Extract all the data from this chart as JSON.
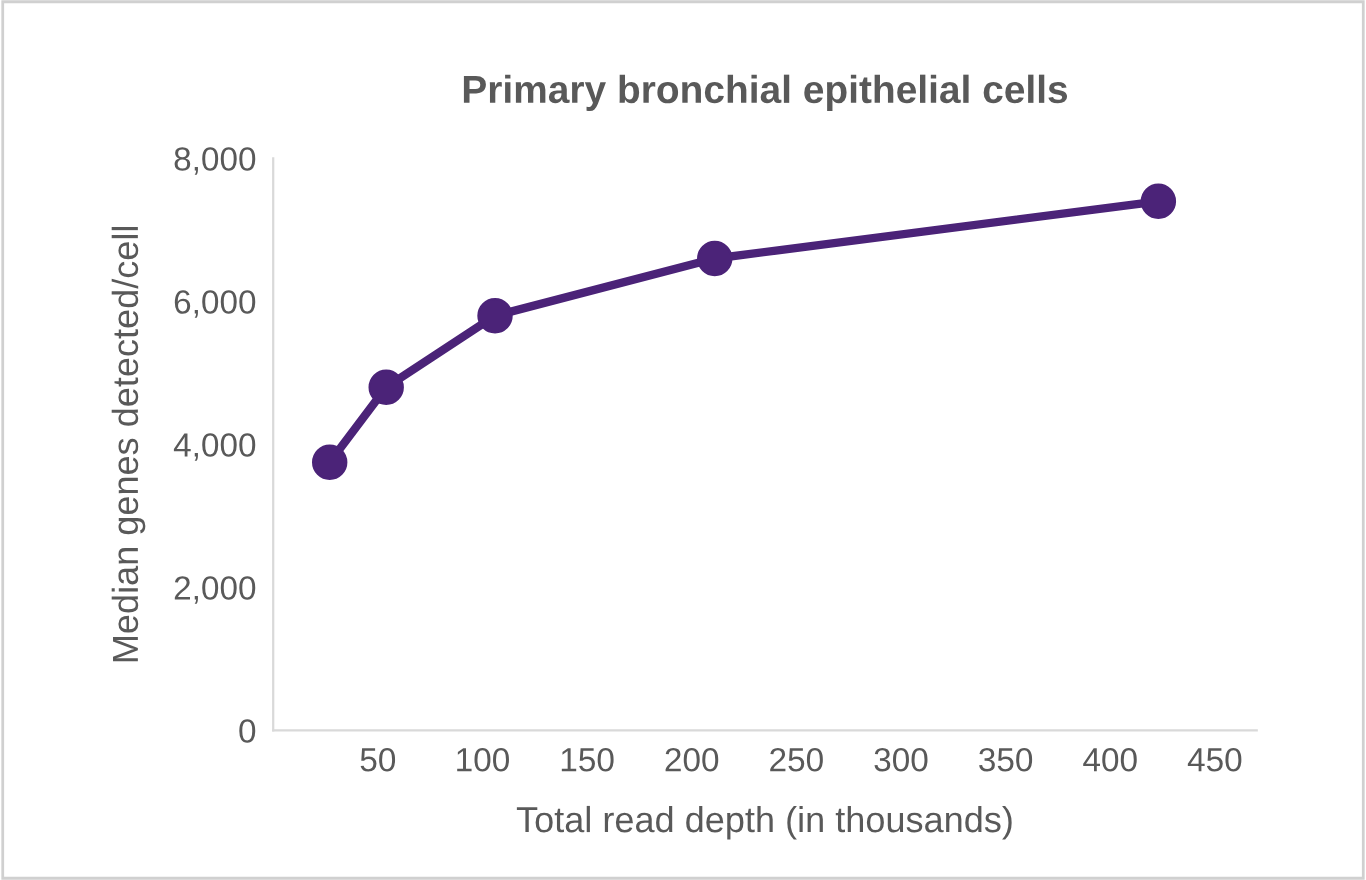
{
  "chart_data": {
    "type": "line",
    "title": "Primary bronchial epithelial cells",
    "xlabel": "Total read depth (in thousands)",
    "ylabel": "Median genes detected/cell",
    "x": [
      27,
      54,
      106,
      211,
      423
    ],
    "series": [
      {
        "color": "#4b2378",
        "values": [
          3750,
          4800,
          5800,
          6600,
          7400
        ]
      }
    ],
    "xlim": [
      0,
      470
    ],
    "xticks": [
      50,
      100,
      150,
      200,
      250,
      300,
      350,
      400,
      450
    ],
    "ylim": [
      0,
      8000
    ],
    "yticks": [
      {
        "value": 0,
        "label": "0"
      },
      {
        "value": 2000,
        "label": "2,000"
      },
      {
        "value": 4000,
        "label": "4,000"
      },
      {
        "value": 6000,
        "label": "6,000"
      },
      {
        "value": 8000,
        "label": "8,000"
      }
    ],
    "grid": false,
    "legend": false,
    "marker": "circle",
    "line_style": "solid"
  }
}
